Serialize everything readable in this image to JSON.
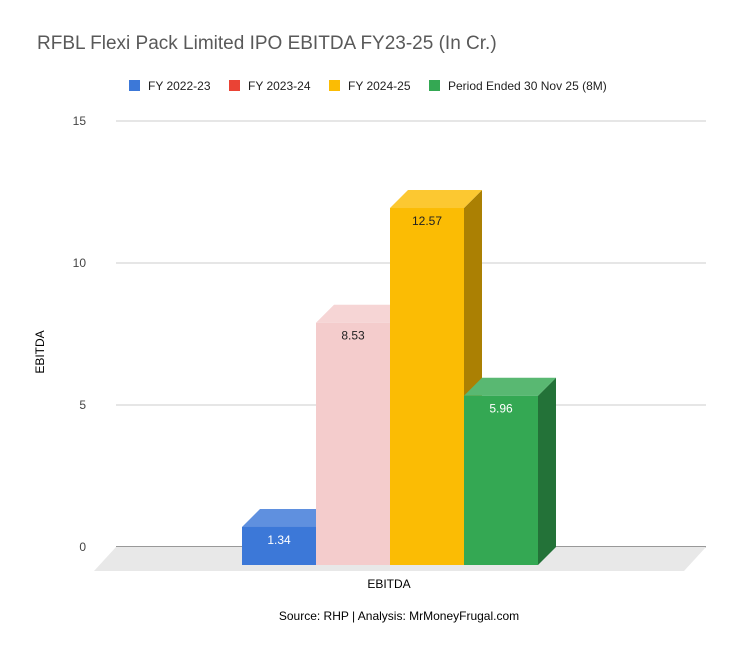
{
  "chart_data": {
    "type": "bar",
    "title": "RFBL Flexi Pack Limited IPO EBITDA FY23-25 (In Cr.)",
    "xlabel": "EBITDA",
    "ylabel": "EBITDA",
    "categories": [
      "EBITDA"
    ],
    "ylim": [
      0,
      15
    ],
    "yticks": [
      "15",
      "10",
      "5",
      "0"
    ],
    "grid": true,
    "legend_position": "top",
    "three_d": true,
    "series": [
      {
        "name": "FY 2022-23",
        "values": [
          1.34
        ],
        "label": "1.34",
        "color": "#3c78d8"
      },
      {
        "name": "FY 2023-24",
        "values": [
          8.53
        ],
        "label": "8.53",
        "color": "#ea4335",
        "bar_color": "#f4cccc"
      },
      {
        "name": "FY 2024-25",
        "values": [
          12.57
        ],
        "label": "12.57",
        "color": "#fbbc04"
      },
      {
        "name": "Period Ended 30 Nov 25 (8M)",
        "values": [
          5.96
        ],
        "label": "5.96",
        "color": "#34a853"
      }
    ],
    "source": "Source: RHP | Analysis: MrMoneyFrugal.com"
  }
}
